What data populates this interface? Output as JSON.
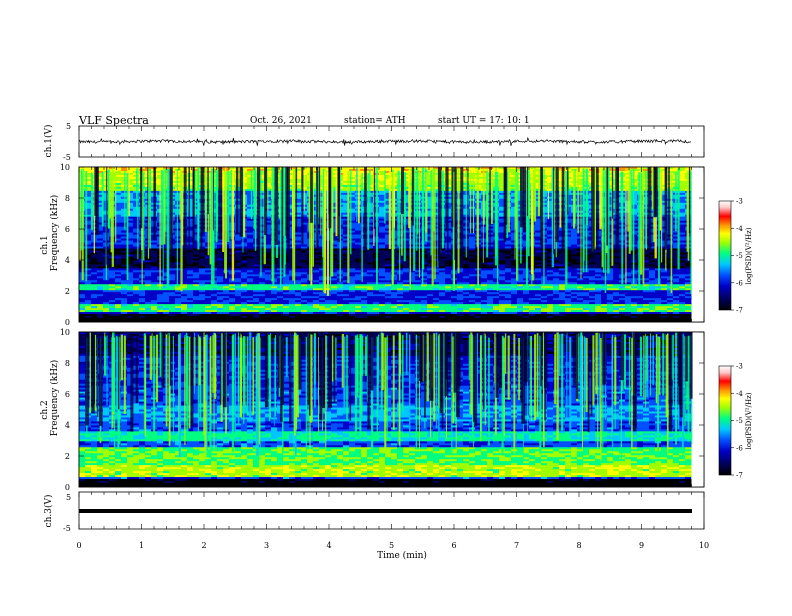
{
  "header": {
    "title": "VLF  Spectra",
    "date": "Oct. 26, 2021",
    "station": "station= ATH",
    "start": "start  UT  =    17: 10: 1"
  },
  "chart_data": [
    {
      "type": "line",
      "panel": "ch1-waveform",
      "ylabel": "ch.1(V)",
      "ylim": [
        -5,
        5
      ],
      "yticks": [
        "5",
        "-5"
      ],
      "xlim": [
        0,
        10
      ],
      "series": [
        {
          "values_note_hidden": true,
          "mean": 0.0,
          "amplitude_range": [
            -1.2,
            0.9
          ],
          "x_end": 9.8
        }
      ]
    },
    {
      "type": "heatmap",
      "panel": "ch1-spectrogram",
      "ylabel": "ch.1",
      "ylabel2": "Frequency  (kHz)",
      "ylim": [
        0,
        10
      ],
      "yticks": [
        "0",
        "2",
        "4",
        "6",
        "8",
        "10"
      ],
      "xlim": [
        0,
        9.8
      ],
      "colorbar": {
        "label": "log(PSD)(V²/Hz)",
        "range": [
          -7,
          -3
        ],
        "ticks": [
          "-3",
          "-4",
          "-5",
          "-6",
          "-7"
        ]
      }
    },
    {
      "type": "heatmap",
      "panel": "ch2-spectrogram",
      "ylabel": "ch.2",
      "ylabel2": "Frequency  (kHz)",
      "ylim": [
        0,
        10
      ],
      "yticks": [
        "0",
        "2",
        "4",
        "6",
        "8",
        "10"
      ],
      "xlim": [
        0,
        9.8
      ],
      "colorbar": {
        "label": "log(PSD)(V²/Hz)",
        "range": [
          -7,
          -3
        ],
        "ticks": [
          "-3",
          "-4",
          "-5",
          "-6",
          "-7"
        ]
      }
    },
    {
      "type": "line",
      "panel": "ch3-waveform",
      "ylabel": "ch.3(V)",
      "ylim": [
        -5,
        5
      ],
      "yticks": [
        "5",
        "0",
        "-5"
      ],
      "xlim": [
        0,
        10
      ],
      "series": [
        {
          "constant_value": 0.0,
          "x_end": 9.8
        }
      ]
    }
  ],
  "xaxis": {
    "label": "Time  (min)",
    "ticks": [
      "0",
      "1",
      "2",
      "3",
      "4",
      "5",
      "6",
      "7",
      "8",
      "9",
      "10"
    ]
  },
  "colors": {
    "colormap": [
      "#000000",
      "#00005a",
      "#0000c8",
      "#0050ff",
      "#00c8ff",
      "#00ff80",
      "#a0ff00",
      "#ffff00",
      "#ff9000",
      "#ff0000",
      "#ffc8c8",
      "#ffffff"
    ],
    "trace": "#000000"
  }
}
